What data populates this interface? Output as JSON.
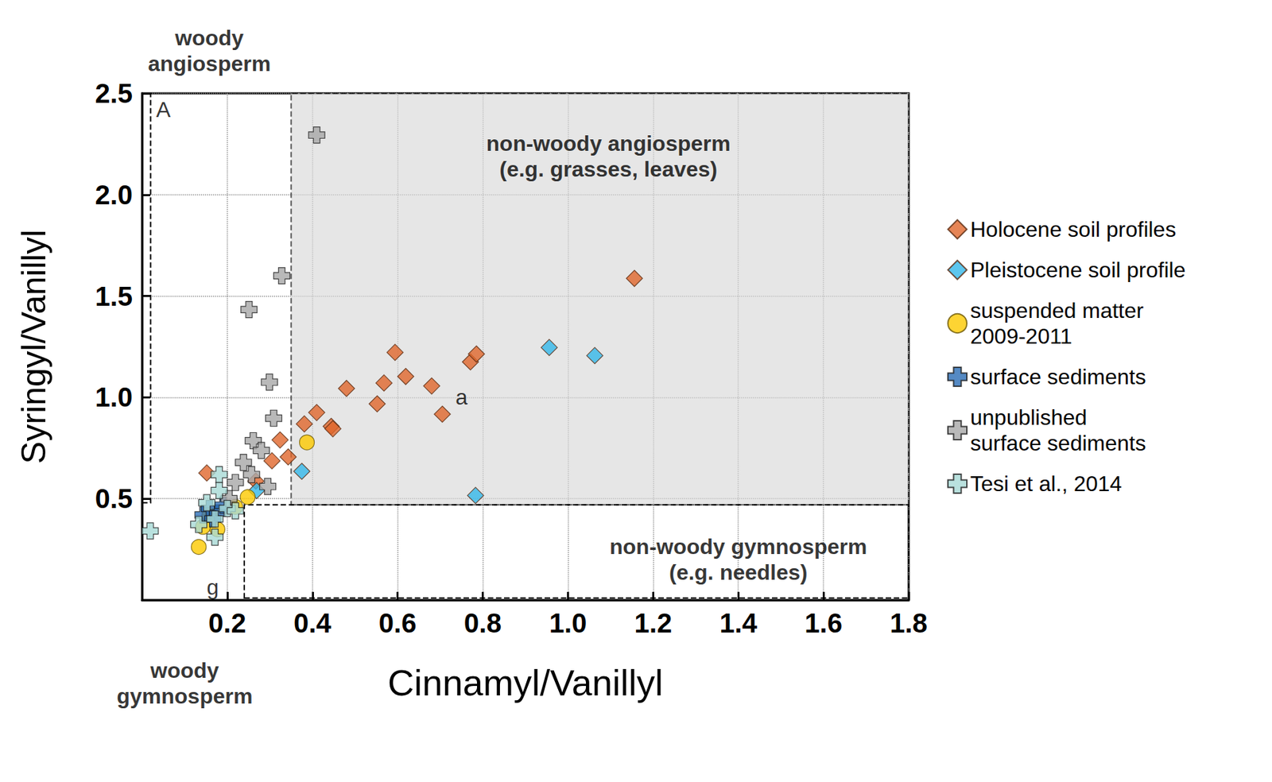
{
  "chart_data": {
    "type": "scatter",
    "xlabel": "Cinnamyl/Vanillyl",
    "ylabel": "Syringyl/Vanillyl",
    "xlim": [
      0,
      1.8
    ],
    "ylim": [
      0,
      2.5
    ],
    "xticks": [
      0.2,
      0.4,
      0.6,
      0.8,
      {
        "value": 1,
        "label": "1.0"
      },
      1.2,
      1.4,
      1.6,
      1.8
    ],
    "yticks": [
      0.5,
      {
        "value": 1,
        "label": "1.0"
      },
      1.5,
      {
        "value": 2,
        "label": "2.0"
      },
      2.5
    ],
    "grid": true,
    "legend": "right",
    "series": [
      {
        "name": "Holocene soil profiles",
        "color": "#e0662c",
        "marker": "diamond",
        "x": [
          0.152,
          0.267,
          0.305,
          0.324,
          0.343,
          0.381,
          0.41,
          0.444,
          0.448,
          0.48,
          0.552,
          0.568,
          0.594,
          0.619,
          0.68,
          0.705,
          0.771,
          0.785,
          1.156
        ],
        "y": [
          0.627,
          0.587,
          0.687,
          0.79,
          0.706,
          0.869,
          0.925,
          0.857,
          0.845,
          1.044,
          0.968,
          1.071,
          1.222,
          1.103,
          1.056,
          0.917,
          1.175,
          1.214,
          1.587
        ]
      },
      {
        "name": "Pleistocene soil profile",
        "color": "#35b8ea",
        "marker": "diamond",
        "x": [
          0.269,
          0.375,
          0.956,
          1.063,
          0.783
        ],
        "y": [
          0.54,
          0.635,
          1.246,
          1.206,
          0.516
        ]
      },
      {
        "name": "suspended matter\n2009-2011",
        "color": "#fcc900",
        "marker": "circle",
        "x": [
          0.133,
          0.143,
          0.177,
          0.219,
          0.248,
          0.387,
          0.158
        ],
        "y": [
          0.262,
          0.361,
          0.349,
          0.46,
          0.508,
          0.778,
          0.42
        ]
      },
      {
        "name": "surface sediments",
        "color": "#2a6db5",
        "marker": "cross",
        "x": [
          0.143,
          0.158,
          0.177,
          0.19,
          0.166
        ],
        "y": [
          0.42,
          0.452,
          0.429,
          0.468,
          0.4
        ]
      },
      {
        "name": "unpublished\nsurface sediments",
        "color": "#a8a8a8",
        "marker": "cross",
        "x": [
          0.41,
          0.328,
          0.251,
          0.299,
          0.309,
          0.261,
          0.28,
          0.238,
          0.257,
          0.295,
          0.219,
          0.204
        ],
        "y": [
          2.294,
          1.6,
          1.433,
          1.075,
          0.897,
          0.786,
          0.738,
          0.679,
          0.619,
          0.56,
          0.58,
          0.5
        ]
      },
      {
        "name": "Tesi et al., 2014",
        "color": "#a7d9d6",
        "marker": "cross",
        "x": [
          0.019,
          0.133,
          0.171,
          0.181,
          0.181,
          0.2,
          0.171,
          0.152,
          0.219
        ],
        "y": [
          0.341,
          0.373,
          0.4,
          0.619,
          0.54,
          0.452,
          0.31,
          0.48,
          0.44
        ]
      }
    ],
    "regions": [
      {
        "x": [
          0,
          0.02
        ],
        "y": [
          0.48,
          2.5
        ],
        "line_style": "dashed"
      },
      {
        "x": [
          0.35,
          1.8
        ],
        "y": [
          0.47,
          2.5
        ],
        "line_style": "dashed",
        "color": "#d9d9d9"
      },
      {
        "x": [
          0.24,
          1.8
        ],
        "y": [
          0.01,
          0.47
        ],
        "line_style": "dashed"
      }
    ],
    "annotations": [
      {
        "text": "woody\nangiosperm",
        "x": 0.158,
        "y": 2.71
      },
      {
        "text": "A",
        "x": 0.05,
        "y": 2.42
      },
      {
        "text": "non-woody angiosperm\n(e.g. grasses, leaves)",
        "x": 1.095,
        "y": 2.19
      },
      {
        "text": "a",
        "x": 0.75,
        "y": 1.0
      },
      {
        "text": "non-woody gymnosperm\n(e.g. needles)",
        "x": 1.4,
        "y": 0.2
      },
      {
        "text": "g",
        "x": 0.166,
        "y": 0.063
      },
      {
        "text": "woody\ngymnosperm",
        "x": 0.1,
        "y": -0.41
      }
    ]
  }
}
